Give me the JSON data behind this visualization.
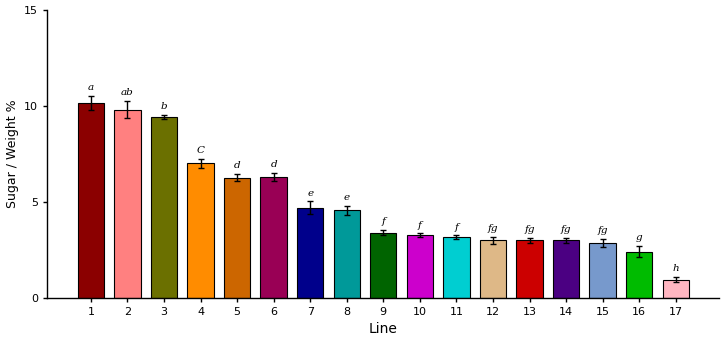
{
  "categories": [
    "1",
    "2",
    "3",
    "4",
    "5",
    "6",
    "7",
    "8",
    "9",
    "10",
    "11",
    "12",
    "13",
    "14",
    "15",
    "16",
    "17"
  ],
  "values": [
    10.15,
    9.8,
    9.4,
    7.0,
    6.25,
    6.3,
    4.7,
    4.55,
    3.4,
    3.25,
    3.15,
    3.0,
    3.0,
    3.0,
    2.85,
    2.4,
    0.95
  ],
  "errors": [
    0.35,
    0.45,
    0.12,
    0.25,
    0.18,
    0.22,
    0.32,
    0.22,
    0.12,
    0.1,
    0.1,
    0.18,
    0.12,
    0.12,
    0.2,
    0.3,
    0.12
  ],
  "bar_colors": [
    "#8B0000",
    "#FF8080",
    "#6B7000",
    "#FF8C00",
    "#CC6600",
    "#990055",
    "#00008B",
    "#009999",
    "#006400",
    "#CC00CC",
    "#00CED1",
    "#DEB887",
    "#CC0000",
    "#4B0082",
    "#7799CC",
    "#00BB00",
    "#FFB6C1"
  ],
  "labels": [
    "a",
    "ab",
    "b",
    "C",
    "d",
    "d",
    "e",
    "e",
    "f",
    "f",
    "f",
    "fg",
    "fg",
    "fg",
    "fg",
    "g",
    "h"
  ],
  "xlabel": "Line",
  "ylabel": "Sugar / Weight %",
  "ylim": [
    0,
    15
  ],
  "yticks": [
    0,
    5,
    10,
    15
  ],
  "background_color": "#ffffff",
  "edge_color": "#000000",
  "bar_width": 0.72,
  "figwidth": 7.25,
  "figheight": 3.42,
  "dpi": 100
}
